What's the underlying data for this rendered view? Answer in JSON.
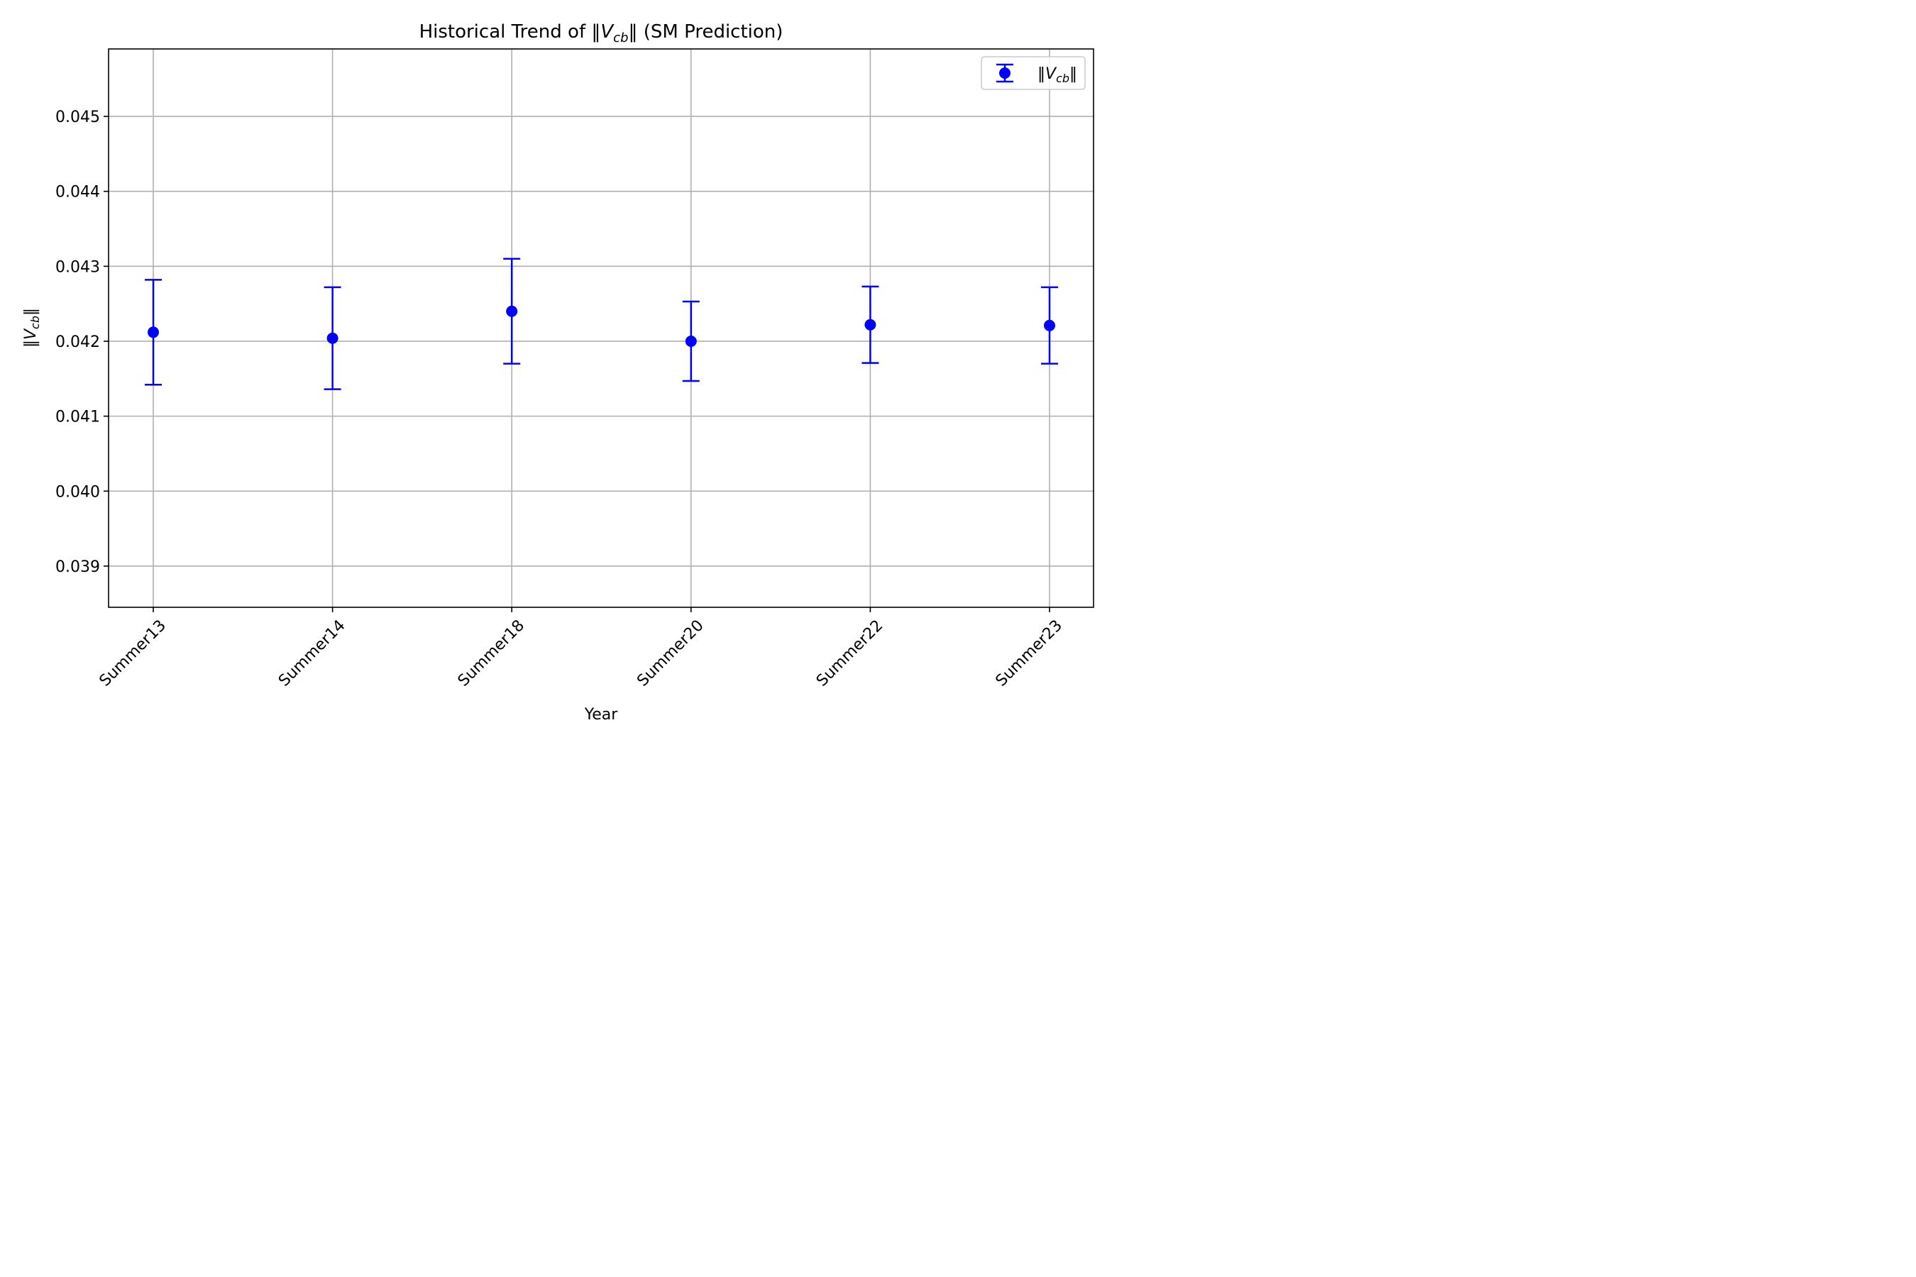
{
  "chart_data": {
    "type": "scatter",
    "title_prefix": "Historical Trend of ‖",
    "title_var": "V",
    "title_sub": "cb",
    "title_suffix": "‖ (SM Prediction)",
    "xlabel": "Year",
    "ylabel_prefix": "‖",
    "ylabel_var": "V",
    "ylabel_sub": "cb",
    "ylabel_suffix": "‖",
    "categories": [
      "Summer13",
      "Summer14",
      "Summer18",
      "Summer20",
      "Summer22",
      "Summer23"
    ],
    "series": [
      {
        "name": "‖V_cb‖",
        "legend_prefix": "‖",
        "legend_var": "V",
        "legend_sub": "cb",
        "legend_suffix": "‖",
        "color": "#0000ff",
        "values": [
          0.04212,
          0.04204,
          0.0424,
          0.042,
          0.04222,
          0.04221
        ],
        "errors": [
          0.0007,
          0.00068,
          0.0007,
          0.00053,
          0.00051,
          0.00051
        ]
      }
    ],
    "ylim": [
      0.03845,
      0.0459
    ],
    "yticks": [
      0.039,
      0.04,
      0.041,
      0.042,
      0.043,
      0.044,
      0.045
    ],
    "ytick_labels": [
      "0.039",
      "0.040",
      "0.041",
      "0.042",
      "0.043",
      "0.044",
      "0.045"
    ],
    "grid": true,
    "legend_position": "top-right",
    "xtick_rotation_deg": 45
  }
}
